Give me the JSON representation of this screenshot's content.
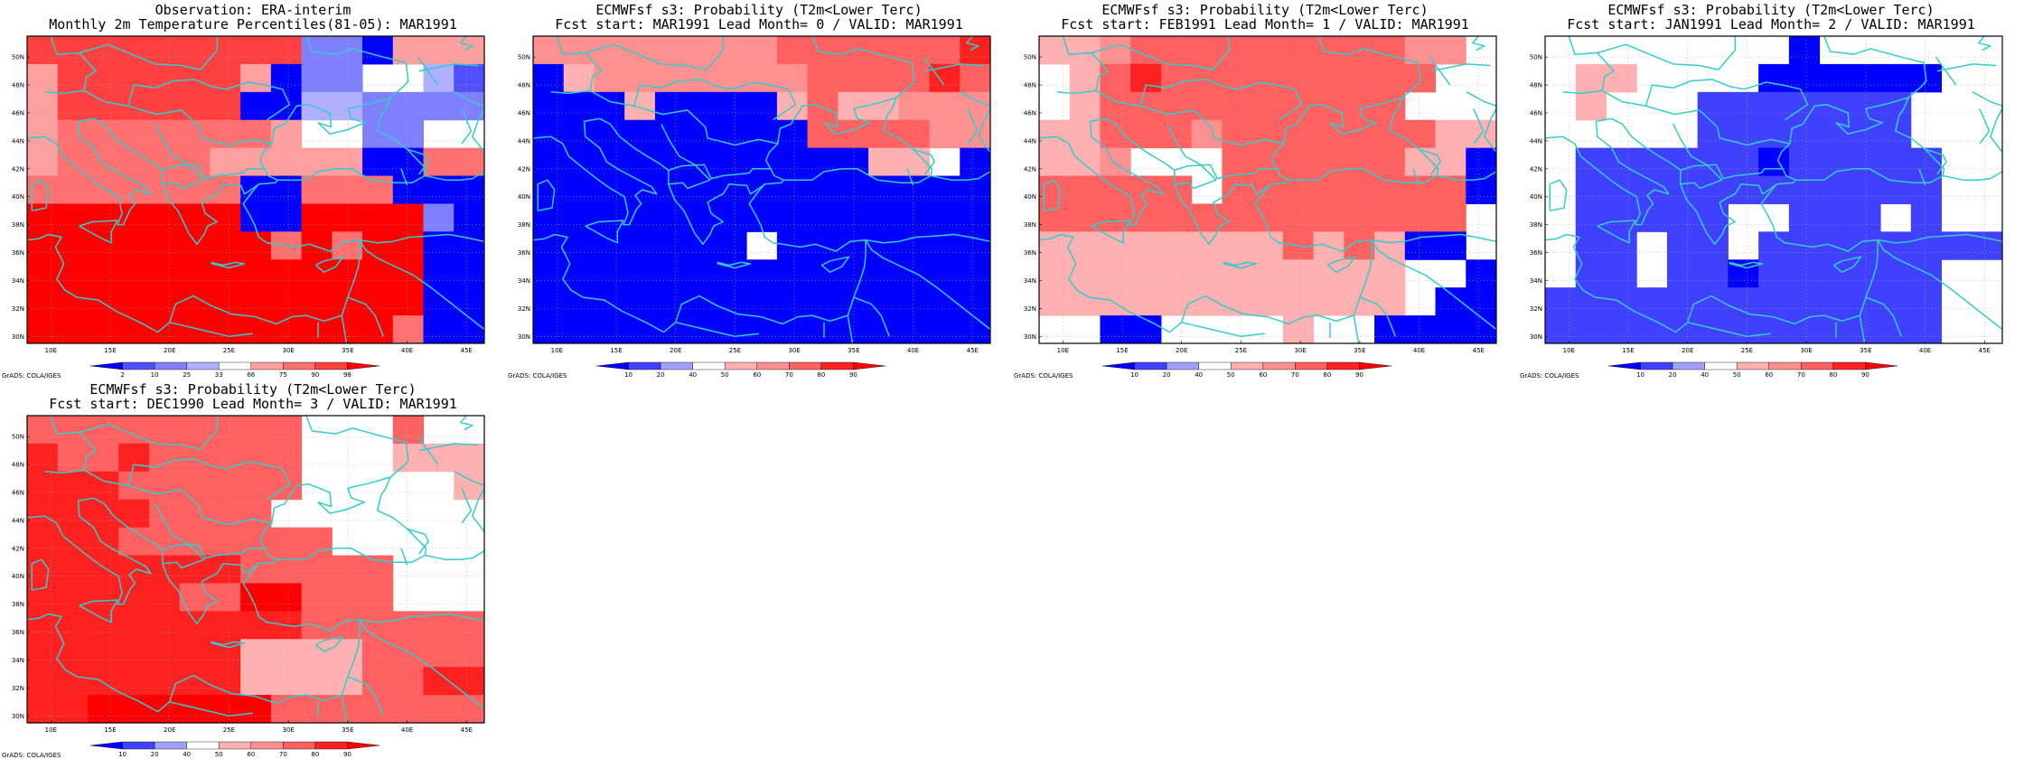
{
  "panels": [
    {
      "title_line1": "Observation: ERA-interim",
      "title_line2": "Monthly 2m Temperature Percentiles(81-05): MAR1991",
      "colorbar": {
        "labels": [
          "2",
          "10",
          "25",
          "33",
          "66",
          "75",
          "90",
          "98"
        ],
        "colors": [
          "#0000ff",
          "#5050ff",
          "#8080ff",
          "#b0b0ff",
          "#ffffff",
          "#ffa0a0",
          "#ff7070",
          "#ff4040",
          "#ff0000"
        ]
      },
      "grid": [
        "777777777220555",
        "577777750224431",
        "577777700332222",
        "566666665442244",
        "566666555550066",
        "666666600666000",
        "888888800888820",
        "888888886868800",
        "888888888888800",
        "888888888888800",
        "888888888888600"
      ]
    },
    {
      "title_line1": "ECMWFsf s3: Probability (T2m<Lower Terc)",
      "title_line2": "Fcst start: MAR1991  Lead Month= 0 / VALID: MAR1991",
      "colorbar": {
        "labels": [
          "10",
          "20",
          "40",
          "50",
          "60",
          "70",
          "80",
          "90"
        ],
        "colors": [
          "#0000ff",
          "#4040ff",
          "#a0a0ff",
          "#ffffff",
          "#ffb0b0",
          "#ff9090",
          "#ff6060",
          "#ff2020",
          "#ff0000"
        ]
      },
      "grid": [
        "555555556666667",
        "045555555666676",
        "000400004644555",
        "000000000666655",
        "000000000004430",
        "000000000000000",
        "000000000000000",
        "000000030000000",
        "000000000000000",
        "000000000000000",
        "000000000000000"
      ]
    },
    {
      "title_line1": "ECMWFsf s3: Probability (T2m<Lower Terc)",
      "title_line2": "Fcst start: FEB1991  Lead Month= 1 / VALID: MAR1991",
      "colorbar": {
        "labels": [
          "10",
          "20",
          "40",
          "50",
          "60",
          "70",
          "80",
          "90"
        ],
        "colors": [
          "#0000ff",
          "#4040ff",
          "#a0a0ff",
          "#ffffff",
          "#ffb0b0",
          "#ff9090",
          "#ff6060",
          "#ff2020",
          "#ff0000"
        ]
      },
      "grid": [
        "445666666666553",
        "346766666666633",
        "346666666666333",
        "446665666666644",
        "445333666666440",
        "666663666666660",
        "666666666666663",
        "444444446464003",
        "444444444444330",
        "444444444444300",
        "330033334330000"
      ]
    },
    {
      "title_line1": "ECMWFsf s3: Probability (T2m<Lower Terc)",
      "title_line2": "Fcst start: JAN1991  Lead Month= 2 / VALID: MAR1991",
      "colorbar": {
        "labels": [
          "10",
          "20",
          "40",
          "50",
          "60",
          "70",
          "80",
          "90"
        ],
        "colors": [
          "#0000ff",
          "#4040ff",
          "#a0a0ff",
          "#ffffff",
          "#ffb0b0",
          "#ff9090",
          "#ff6060",
          "#ff2020",
          "#ff0000"
        ]
      },
      "grid": [
        "333333330333333",
        "344333300000033",
        "343331111111333",
        "333331111111333",
        "311111101111133",
        "311111111111133",
        "311111331113133",
        "311311311111111",
        "311311011111133",
        "111111111111133",
        "111111111111133"
      ]
    },
    {
      "title_line1": "ECMWFsf s3: Probability (T2m<Lower Terc)",
      "title_line2": "Fcst start: DEC1990  Lead Month= 3 / VALID: MAR1991",
      "colorbar": {
        "labels": [
          "10",
          "20",
          "40",
          "50",
          "60",
          "70",
          "80",
          "90"
        ],
        "colors": [
          "#0000ff",
          "#4040ff",
          "#a0a0ff",
          "#ffffff",
          "#ffb0b0",
          "#ff9090",
          "#ff6060",
          "#ff2020",
          "#ff0000"
        ]
      },
      "grid": [
        "666666666333633",
        "766766666333444",
        "777666666333334",
        "777766663333333",
        "777666666633333",
        "777777766666333",
        "777776688666333",
        "777777777666666",
        "777777744446666",
        "777777744446677",
        "778888886666666"
      ]
    }
  ],
  "map": {
    "lat_labels": [
      "50N",
      "48N",
      "46N",
      "44N",
      "42N",
      "40N",
      "38N",
      "36N",
      "34N",
      "32N",
      "30N"
    ],
    "lon_labels": [
      "10E",
      "15E",
      "20E",
      "25E",
      "30E",
      "35E",
      "40E",
      "45E"
    ],
    "coast_color": "#33cccc"
  },
  "grads_label": "GrADS: COLA/IGES"
}
